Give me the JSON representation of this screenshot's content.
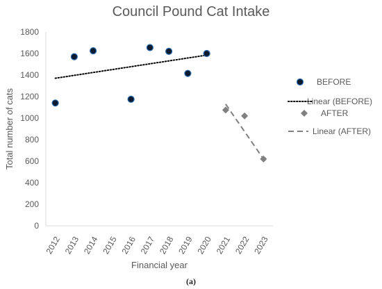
{
  "chart_data": {
    "type": "scatter",
    "title": "Council Pound Cat Intake",
    "xlabel": "Financial year",
    "ylabel": "Total number of cats",
    "x_ticks": [
      "2012",
      "2013",
      "2014",
      "2015",
      "2016",
      "2017",
      "2018",
      "2019",
      "2020",
      "2021",
      "2022",
      "2023"
    ],
    "y_ticks": [
      0,
      200,
      400,
      600,
      800,
      1000,
      1200,
      1400,
      1600,
      1800
    ],
    "ylim": [
      0,
      1800
    ],
    "grid": false,
    "legend_position": "right",
    "series": [
      {
        "name": "BEFORE",
        "marker": "circle",
        "color": "#0b1a2e",
        "points": [
          {
            "x": 2012,
            "y": 1140
          },
          {
            "x": 2013,
            "y": 1570
          },
          {
            "x": 2014,
            "y": 1625
          },
          {
            "x": 2016,
            "y": 1175
          },
          {
            "x": 2017,
            "y": 1655
          },
          {
            "x": 2018,
            "y": 1620
          },
          {
            "x": 2019,
            "y": 1415
          },
          {
            "x": 2020,
            "y": 1600
          }
        ]
      },
      {
        "name": "AFTER",
        "marker": "diamond",
        "color": "#808080",
        "points": [
          {
            "x": 2021,
            "y": 1075
          },
          {
            "x": 2022,
            "y": 1020
          },
          {
            "x": 2023,
            "y": 620
          }
        ]
      }
    ],
    "trendlines": [
      {
        "name": "Linear (BEFORE)",
        "style": "dotted",
        "color": "#000000",
        "x_start": 2012,
        "y_start": 1370,
        "x_end": 2020,
        "y_end": 1585
      },
      {
        "name": "Linear (AFTER)",
        "style": "dashed",
        "color": "#808080",
        "x_start": 2021,
        "y_start": 1130,
        "x_end": 2023,
        "y_end": 620
      }
    ],
    "legend": [
      "BEFORE",
      "Linear (BEFORE)",
      "AFTER",
      "Linear (AFTER)"
    ]
  },
  "caption": "(a)"
}
